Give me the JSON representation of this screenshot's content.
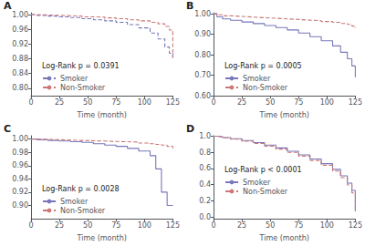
{
  "chart_data": [
    {
      "type": "step",
      "title": "A",
      "annotation": "Log-Rank p = 0.0391",
      "xlabel": "Time (month)",
      "xlim": [
        0,
        125
      ],
      "xticks": [
        0,
        25,
        50,
        75,
        100,
        125
      ],
      "ylim": [
        0.78,
        1.005
      ],
      "yticks": [
        {
          "value": 0.8,
          "label": "0.80"
        },
        0.84,
        0.88,
        0.92,
        0.96,
        {
          "value": 1.0,
          "label": "1.00"
        }
      ],
      "grid": false,
      "legend": "lower left",
      "x": [
        0,
        5,
        15,
        25,
        35,
        45,
        55,
        65,
        75,
        85,
        95,
        105,
        112,
        118,
        122,
        125
      ],
      "series": [
        {
          "name": "Smoker",
          "color": "#7777bb",
          "line_style": "dashed",
          "values": [
            1.0,
            0.998,
            0.996,
            0.994,
            0.992,
            0.989,
            0.986,
            0.983,
            0.979,
            0.973,
            0.964,
            0.95,
            0.934,
            0.912,
            0.895,
            0.88
          ]
        },
        {
          "name": "Non-Smoker",
          "color": "#cc7777",
          "line_style": "dashed",
          "values": [
            1.0,
            0.999,
            0.998,
            0.997,
            0.996,
            0.994,
            0.993,
            0.991,
            0.989,
            0.986,
            0.983,
            0.979,
            0.975,
            0.968,
            0.958,
            0.882
          ]
        }
      ]
    },
    {
      "type": "step",
      "title": "B",
      "annotation": "Log-Rank p = 0.0005",
      "xlabel": "Time (month)",
      "xlim": [
        0,
        125
      ],
      "xticks": [
        0,
        25,
        50,
        75,
        100,
        125
      ],
      "ylim": [
        0.6,
        1.005
      ],
      "yticks": [
        {
          "value": 0.6,
          "label": "0.60"
        },
        {
          "value": 0.7,
          "label": "0.70"
        },
        {
          "value": 0.8,
          "label": "0.80"
        },
        {
          "value": 0.9,
          "label": "0.90"
        },
        {
          "value": 1.0,
          "label": "1.00"
        }
      ],
      "grid": false,
      "legend": "lower left",
      "x": [
        0,
        3,
        8,
        15,
        25,
        35,
        45,
        55,
        65,
        75,
        85,
        95,
        105,
        112,
        118,
        122,
        125
      ],
      "series": [
        {
          "name": "Smoker",
          "color": "#7777bb",
          "line_style": "solid",
          "values": [
            1.0,
            0.985,
            0.975,
            0.968,
            0.96,
            0.952,
            0.943,
            0.933,
            0.921,
            0.906,
            0.888,
            0.868,
            0.843,
            0.812,
            0.78,
            0.745,
            0.69
          ]
        },
        {
          "name": "Non-Smoker",
          "color": "#cc7777",
          "line_style": "dashed",
          "values": [
            1.0,
            0.995,
            0.99,
            0.987,
            0.984,
            0.981,
            0.978,
            0.975,
            0.972,
            0.969,
            0.966,
            0.962,
            0.958,
            0.953,
            0.948,
            0.94,
            0.93
          ]
        }
      ]
    },
    {
      "type": "step",
      "title": "C",
      "annotation": "Log-Rank p = 0.0028",
      "xlabel": "Time (month)",
      "xlim": [
        0,
        125
      ],
      "xticks": [
        0,
        25,
        50,
        75,
        100,
        125
      ],
      "ylim": [
        0.88,
        1.005
      ],
      "yticks": [
        {
          "value": 0.9,
          "label": "0.90"
        },
        0.92,
        0.94,
        0.96,
        0.98,
        {
          "value": 1.0,
          "label": "1.00"
        }
      ],
      "grid": false,
      "legend": "lower left",
      "x": [
        0,
        5,
        15,
        25,
        35,
        45,
        55,
        65,
        75,
        85,
        95,
        105,
        110,
        115,
        120,
        125
      ],
      "series": [
        {
          "name": "Smoker",
          "color": "#7777bb",
          "line_style": "solid",
          "values": [
            1.0,
            0.999,
            0.998,
            0.997,
            0.996,
            0.995,
            0.993,
            0.991,
            0.989,
            0.986,
            0.982,
            0.975,
            0.955,
            0.92,
            0.9,
            0.9
          ]
        },
        {
          "name": "Non-Smoker",
          "color": "#cc7777",
          "line_style": "dashed",
          "values": [
            1.0,
            0.9995,
            0.999,
            0.9985,
            0.998,
            0.9975,
            0.997,
            0.9965,
            0.996,
            0.9955,
            0.994,
            0.993,
            0.992,
            0.991,
            0.989,
            0.986
          ]
        }
      ]
    },
    {
      "type": "step",
      "title": "D",
      "annotation": "Log-Rank p < 0.0001",
      "xlabel": "Time (month)",
      "xlim": [
        0,
        125
      ],
      "xticks": [
        0,
        25,
        50,
        75,
        100,
        125
      ],
      "ylim": [
        -0.02,
        1.005
      ],
      "yticks": [
        {
          "value": 0.0,
          "label": "0.0"
        },
        0.2,
        0.4,
        0.6,
        0.8,
        {
          "value": 1.0,
          "label": "1.0"
        }
      ],
      "grid": false,
      "legend": "center left",
      "x": [
        0,
        3,
        8,
        15,
        25,
        35,
        45,
        55,
        65,
        75,
        85,
        95,
        105,
        112,
        118,
        122,
        125
      ],
      "series": [
        {
          "name": "Smoker",
          "color": "#7777bb",
          "line_style": "solid",
          "values": [
            1.0,
            0.993,
            0.983,
            0.968,
            0.946,
            0.92,
            0.889,
            0.854,
            0.814,
            0.769,
            0.718,
            0.66,
            0.59,
            0.51,
            0.42,
            0.33,
            0.07
          ]
        },
        {
          "name": "Non-Smoker",
          "color": "#cc7777",
          "line_style": "dashed",
          "values": [
            1.0,
            0.992,
            0.98,
            0.962,
            0.938,
            0.91,
            0.877,
            0.84,
            0.799,
            0.753,
            0.7,
            0.64,
            0.568,
            0.487,
            0.396,
            0.3,
            0.095
          ]
        }
      ]
    }
  ]
}
